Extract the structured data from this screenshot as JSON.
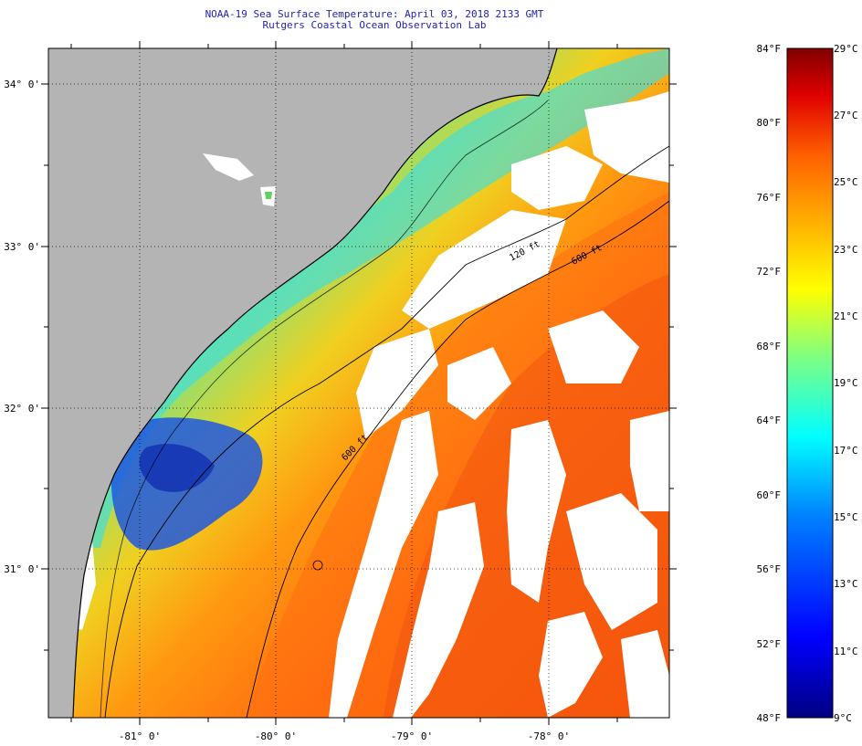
{
  "header": {
    "line1": "NOAA-19 Sea Surface Temperature:  April 03, 2018 2133 GMT",
    "line2": "Rutgers Coastal Ocean Observation Lab"
  },
  "map": {
    "lat_labels": [
      "34° 0'",
      "33° 0'",
      "32° 0'",
      "31° 0'"
    ],
    "lon_labels": [
      "-81° 0'",
      "-80° 0'",
      "-79° 0'",
      "-78° 0'"
    ],
    "isobath_labels": [
      "120 ft",
      "600 ft",
      "600 ft"
    ],
    "colors": {
      "land": "#b4b4b4",
      "cloud": "#ffffff",
      "coast": "#000000"
    }
  },
  "colorbar": {
    "f_labels": [
      "84°F",
      "80°F",
      "76°F",
      "72°F",
      "68°F",
      "64°F",
      "60°F",
      "56°F",
      "52°F",
      "48°F"
    ],
    "c_labels": [
      "29°C",
      "27°C",
      "25°C",
      "23°C",
      "21°C",
      "19°C",
      "17°C",
      "15°C",
      "13°C",
      "11°C",
      "9°C"
    ],
    "range_c": [
      9,
      29
    ],
    "range_f": [
      48,
      84
    ],
    "stops": [
      "#000080",
      "#0000ff",
      "#0080ff",
      "#00ffff",
      "#80ff80",
      "#ffff00",
      "#ffb000",
      "#ff6000",
      "#e00000",
      "#800000"
    ]
  }
}
